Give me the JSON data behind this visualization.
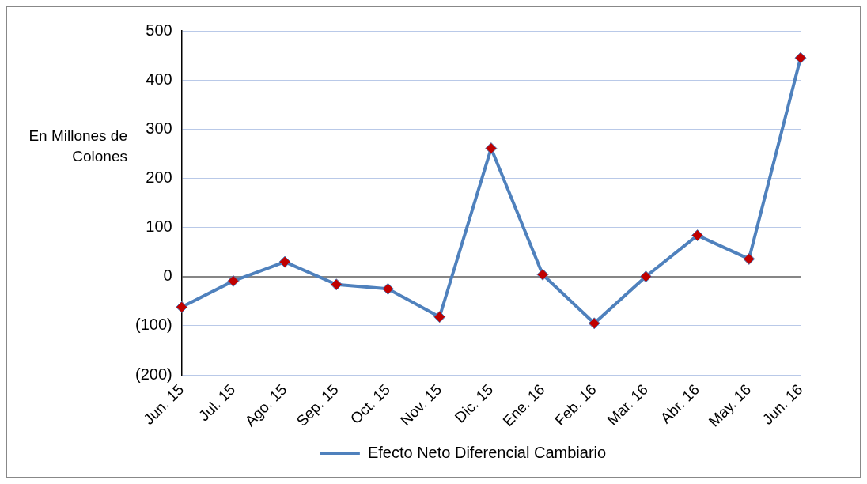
{
  "chart_data": {
    "type": "line",
    "ylabel": "En Millones de Colones",
    "categories": [
      "Jun. 15",
      "Jul. 15",
      "Ago. 15",
      "Sep. 15",
      "Oct. 15",
      "Nov. 15",
      "Dic. 15",
      "Ene. 16",
      "Feb. 16",
      "Mar. 16",
      "Abr. 16",
      "May. 16",
      "Jun. 16"
    ],
    "series": [
      {
        "name": "Efecto Neto Diferencial Cambiario",
        "color": "#4f81bd",
        "colors": [
          "#c00000",
          "#c00000",
          "#c00000",
          "#c00000",
          "#c00000",
          "#c00000",
          "#c00000",
          "#c00000",
          "#c00000",
          "#c00000",
          "#c00000",
          "#c00000",
          "#c00000"
        ],
        "values": [
          -62,
          -9,
          30,
          -16,
          -25,
          -82,
          261,
          4,
          -95,
          0,
          84,
          36,
          445
        ]
      }
    ],
    "ylim": [
      -200,
      500
    ],
    "yticks": [
      {
        "value": -200,
        "label": "(200)"
      },
      {
        "value": -100,
        "label": "(100)"
      },
      0,
      100,
      200,
      300,
      400,
      500
    ],
    "grid": "y",
    "legend": "bottom",
    "marker": "diamond",
    "line_style": "solid"
  }
}
